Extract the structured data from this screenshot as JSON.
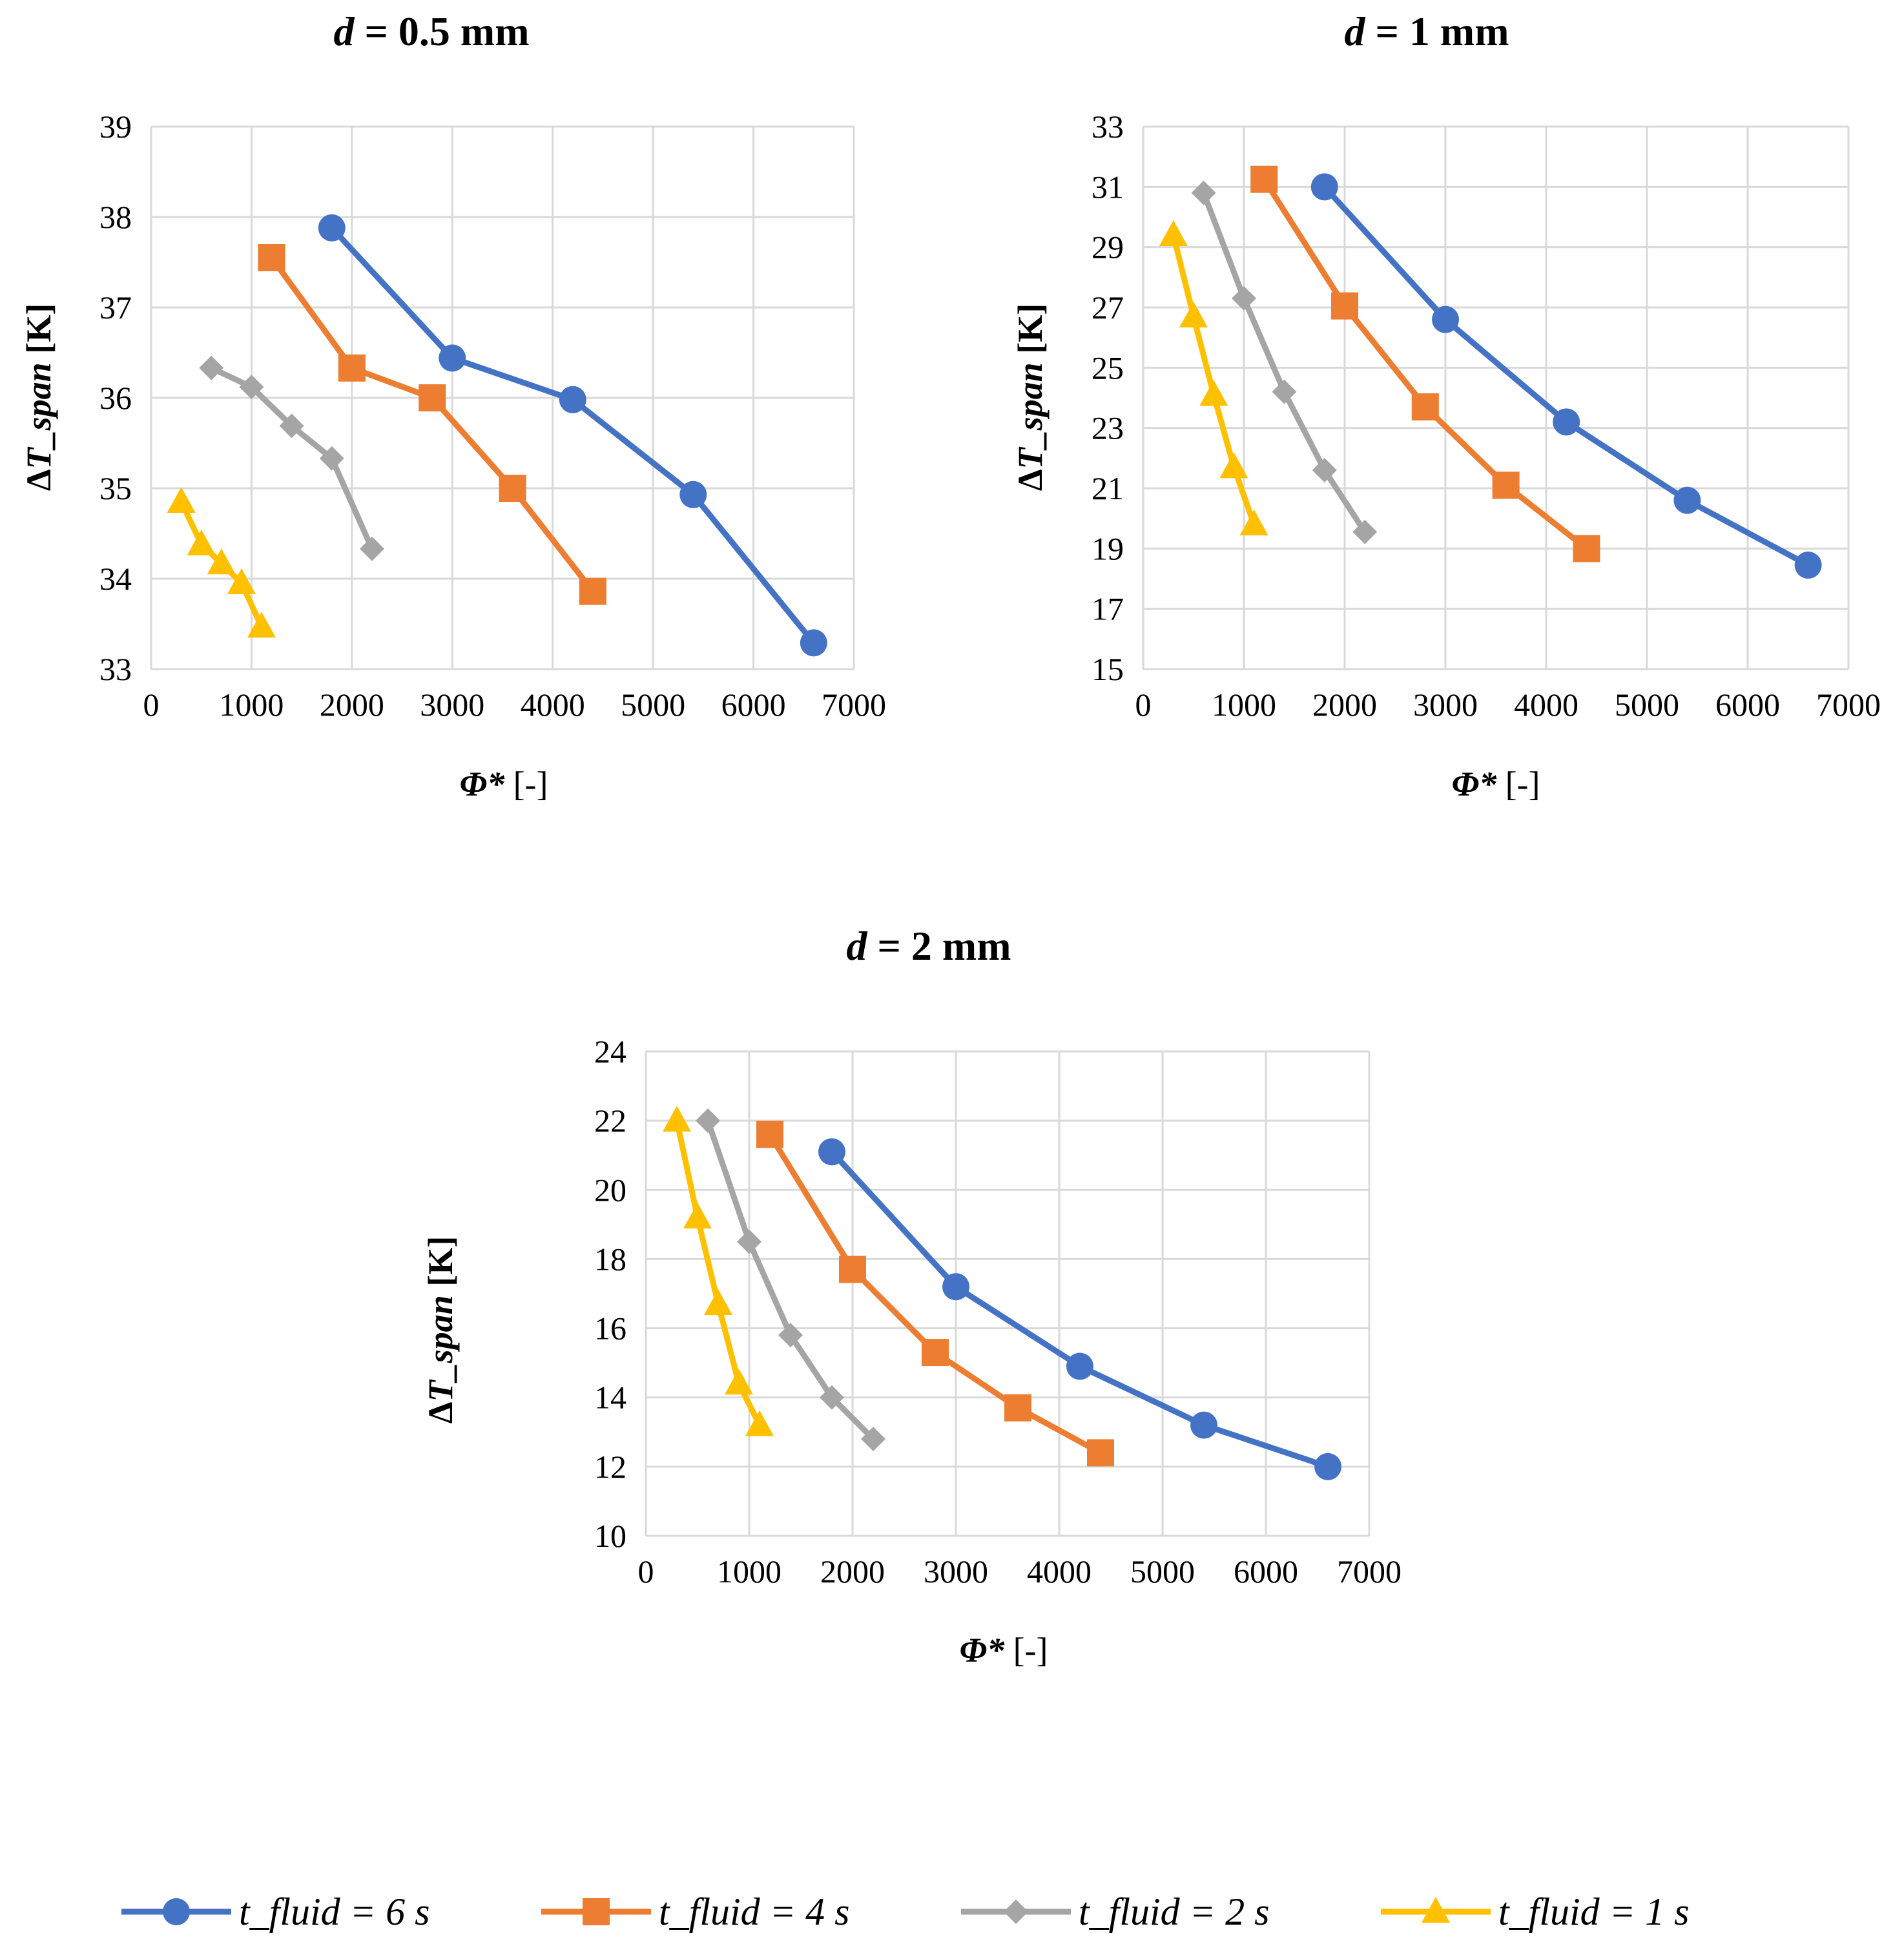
{
  "series_styles": [
    {
      "key": "t6",
      "color": "#4472C4",
      "marker": "circle"
    },
    {
      "key": "t4",
      "color": "#ED7D31",
      "marker": "square"
    },
    {
      "key": "t2",
      "color": "#A5A5A5",
      "marker": "diamond"
    },
    {
      "key": "t1",
      "color": "#FFC000",
      "marker": "triangle"
    }
  ],
  "legend": {
    "items": [
      {
        "key": "t6",
        "label": "t_fluid = 6 s"
      },
      {
        "key": "t4",
        "label": "t_fluid = 4 s"
      },
      {
        "key": "t2",
        "label": "t_fluid = 2 s"
      },
      {
        "key": "t1",
        "label": "t_fluid = 1 s"
      }
    ]
  },
  "chart_data": [
    {
      "type": "line",
      "title_var": "d",
      "title_rest": " = 0.5 mm",
      "xlabel_var": "Φ*",
      "xlabel_rest": " [-]",
      "ylabel_prefix": "Δ",
      "ylabel_var": "T_span",
      "ylabel_rest": " [K]",
      "xlim": [
        0,
        7000
      ],
      "ylim": [
        33,
        39
      ],
      "xticks": [
        0,
        1000,
        2000,
        3000,
        4000,
        5000,
        6000,
        7000
      ],
      "yticks": [
        33,
        34,
        35,
        36,
        37,
        38,
        39
      ],
      "series": [
        {
          "key": "t6",
          "name": "t_fluid = 6 s",
          "x": [
            1800,
            3000,
            4200,
            5400,
            6600
          ],
          "y": [
            37.88,
            36.44,
            35.98,
            34.93,
            33.29
          ]
        },
        {
          "key": "t4",
          "name": "t_fluid = 4 s",
          "x": [
            1200,
            2000,
            2800,
            3600,
            4400
          ],
          "y": [
            37.55,
            36.33,
            36.0,
            35.0,
            33.86
          ]
        },
        {
          "key": "t2",
          "name": "t_fluid = 2 s",
          "x": [
            600,
            1000,
            1400,
            1800,
            2200
          ],
          "y": [
            36.33,
            36.12,
            35.69,
            35.33,
            34.33
          ]
        },
        {
          "key": "t1",
          "name": "t_fluid = 1 s",
          "x": [
            300,
            500,
            700,
            900,
            1100
          ],
          "y": [
            34.85,
            34.38,
            34.17,
            33.95,
            33.47
          ]
        }
      ]
    },
    {
      "type": "line",
      "title_var": "d",
      "title_rest": " = 1 mm",
      "xlabel_var": "Φ*",
      "xlabel_rest": " [-]",
      "ylabel_prefix": "Δ",
      "ylabel_var": "T_span",
      "ylabel_rest": " [K]",
      "xlim": [
        0,
        7000
      ],
      "ylim": [
        15,
        33
      ],
      "xticks": [
        0,
        1000,
        2000,
        3000,
        4000,
        5000,
        6000,
        7000
      ],
      "yticks": [
        15,
        17,
        19,
        21,
        23,
        25,
        27,
        29,
        31,
        33
      ],
      "series": [
        {
          "key": "t6",
          "name": "t_fluid = 6 s",
          "x": [
            1800,
            3000,
            4200,
            5400,
            6600
          ],
          "y": [
            31.0,
            26.6,
            23.2,
            20.6,
            18.45
          ]
        },
        {
          "key": "t4",
          "name": "t_fluid = 4 s",
          "x": [
            1200,
            2000,
            2800,
            3600,
            4400
          ],
          "y": [
            31.25,
            27.05,
            23.7,
            21.1,
            19.0
          ]
        },
        {
          "key": "t2",
          "name": "t_fluid = 2 s",
          "x": [
            600,
            1000,
            1400,
            1800,
            2200
          ],
          "y": [
            30.8,
            27.3,
            24.2,
            21.6,
            19.55
          ]
        },
        {
          "key": "t1",
          "name": "t_fluid = 1 s",
          "x": [
            300,
            500,
            700,
            900,
            1100
          ],
          "y": [
            29.4,
            26.7,
            24.1,
            21.7,
            19.8
          ]
        }
      ]
    },
    {
      "type": "line",
      "title_var": "d",
      "title_rest": " = 2 mm",
      "xlabel_var": "Φ*",
      "xlabel_rest": " [-]",
      "ylabel_prefix": "Δ",
      "ylabel_var": "T_span",
      "ylabel_rest": " [K]",
      "xlim": [
        0,
        7000
      ],
      "ylim": [
        10,
        24
      ],
      "xticks": [
        0,
        1000,
        2000,
        3000,
        4000,
        5000,
        6000,
        7000
      ],
      "yticks": [
        10,
        12,
        14,
        16,
        18,
        20,
        22,
        24
      ],
      "series": [
        {
          "key": "t6",
          "name": "t_fluid = 6 s",
          "x": [
            1800,
            3000,
            4200,
            5400,
            6600
          ],
          "y": [
            21.1,
            17.2,
            14.9,
            13.2,
            12.0
          ]
        },
        {
          "key": "t4",
          "name": "t_fluid = 4 s",
          "x": [
            1200,
            2000,
            2800,
            3600,
            4400
          ],
          "y": [
            21.6,
            17.7,
            15.3,
            13.7,
            12.4
          ]
        },
        {
          "key": "t2",
          "name": "t_fluid = 2 s",
          "x": [
            600,
            1000,
            1400,
            1800,
            2200
          ],
          "y": [
            22.0,
            18.5,
            15.8,
            14.0,
            12.8
          ]
        },
        {
          "key": "t1",
          "name": "t_fluid = 1 s",
          "x": [
            300,
            500,
            700,
            900,
            1100
          ],
          "y": [
            22.0,
            19.2,
            16.7,
            14.4,
            13.2
          ]
        }
      ]
    }
  ]
}
